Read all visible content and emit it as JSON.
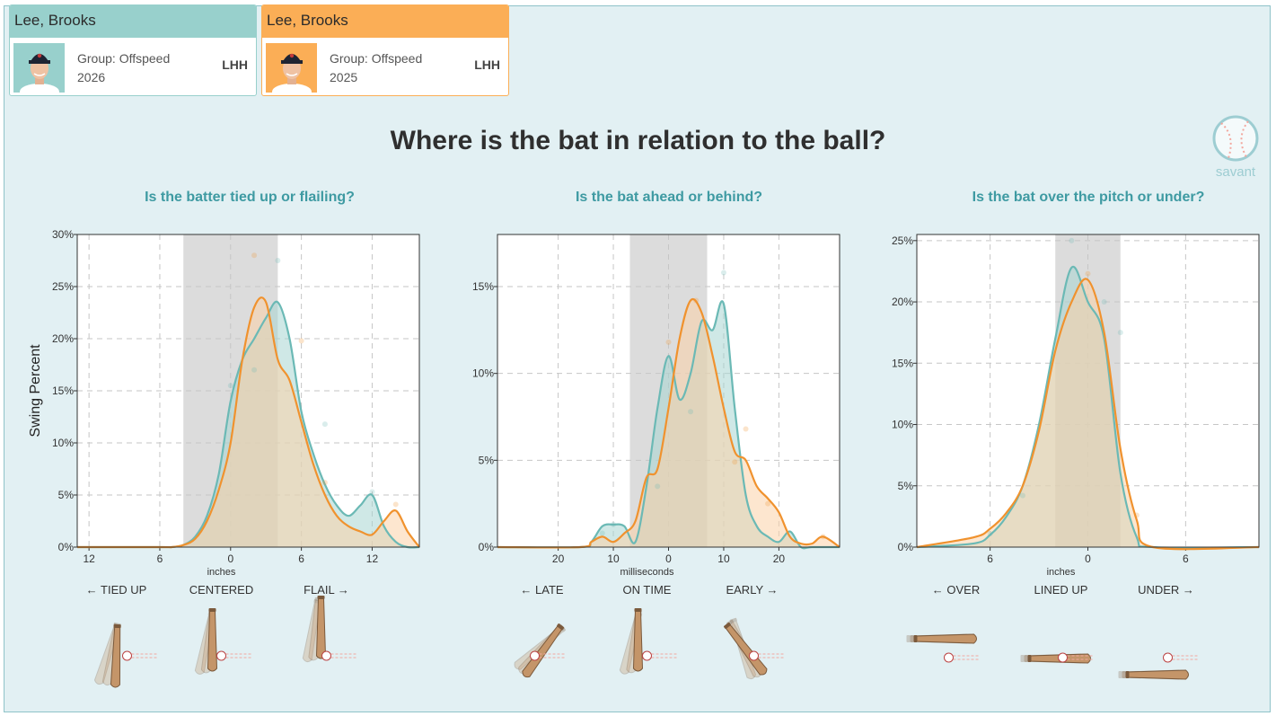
{
  "players": [
    {
      "name": "Lee, Brooks",
      "group": "Group: Offspeed",
      "year": "2026",
      "hand": "LHH",
      "color": "#98d0cc"
    },
    {
      "name": "Lee, Brooks",
      "group": "Group: Offspeed",
      "year": "2025",
      "hand": "LHH",
      "color": "#fbae56"
    }
  ],
  "title": "Where is the bat in relation to the ball?",
  "logo_text": "savant",
  "y_axis_label": "Swing Percent",
  "colors": {
    "series_2026": "#6bb9b5",
    "series_2025": "#f0922e",
    "fill_2026": "#a7d6d2",
    "fill_2025": "#fcd2a7",
    "band": "#dcdcdc"
  },
  "chart_data": [
    {
      "type": "area",
      "title": "Is the batter tied up or flailing?",
      "xlabel": "inches",
      "ylabel": "Swing Percent",
      "x_tick_labels": [
        "12",
        "6",
        "0",
        "6",
        "12"
      ],
      "x_ticks": [
        -12,
        -6,
        0,
        6,
        12
      ],
      "xlim": [
        -13,
        16
      ],
      "ylim": [
        0,
        30
      ],
      "y_ticks": [
        0,
        5,
        10,
        15,
        20,
        25,
        30
      ],
      "y_tick_labels": [
        "0%",
        "5%",
        "10%",
        "15%",
        "20%",
        "25%",
        "30%"
      ],
      "band": [
        -4,
        4
      ],
      "direction_labels": [
        "← TIED UP",
        "CENTERED",
        "FLAIL →"
      ],
      "grid": true,
      "series": [
        {
          "name": "2026",
          "x": [
            -13,
            -6,
            -5,
            -4,
            -3,
            -2,
            -1,
            0,
            1,
            2,
            3,
            4,
            5,
            6,
            7,
            8,
            9,
            10,
            11,
            12,
            13,
            14,
            15,
            16
          ],
          "y": [
            0,
            0,
            0,
            0.2,
            1,
            3,
            7,
            14,
            18,
            20,
            22,
            23.5,
            20,
            13,
            9,
            6,
            4,
            3,
            4,
            5,
            2,
            0.5,
            0,
            0
          ]
        },
        {
          "name": "2025",
          "x": [
            -13,
            -6,
            -5,
            -4,
            -3,
            -2,
            -1,
            0,
            1,
            2,
            3,
            4,
            5,
            6,
            7,
            8,
            9,
            10,
            11,
            12,
            13,
            14,
            15,
            16
          ],
          "y": [
            0,
            0,
            0,
            0.2,
            0.8,
            2.5,
            5.5,
            10,
            18,
            23,
            23.5,
            18,
            16,
            12,
            8,
            5,
            3,
            2,
            1.5,
            1.2,
            2.5,
            3.5,
            1.5,
            0
          ]
        }
      ],
      "points": [
        {
          "series": "2025",
          "x": 2,
          "y": 28
        },
        {
          "series": "2026",
          "x": 4,
          "y": 27.5
        },
        {
          "series": "2026",
          "x": 2,
          "y": 17
        },
        {
          "series": "2026",
          "x": 0,
          "y": 15.5
        },
        {
          "series": "2025",
          "x": 6,
          "y": 19.8
        },
        {
          "series": "2026",
          "x": 8,
          "y": 11.8
        },
        {
          "series": "2025",
          "x": 8,
          "y": 6.2
        },
        {
          "series": "2026",
          "x": 12,
          "y": 5.3
        },
        {
          "series": "2025",
          "x": 14,
          "y": 4.1
        }
      ]
    },
    {
      "type": "area",
      "title": "Is the bat ahead or behind?",
      "xlabel": "milliseconds",
      "ylabel": "",
      "x_tick_labels": [
        "20",
        "10",
        "0",
        "10",
        "20"
      ],
      "x_ticks": [
        -20,
        -10,
        0,
        10,
        20
      ],
      "xlim": [
        -31,
        31
      ],
      "ylim": [
        0,
        18
      ],
      "y_ticks": [
        0,
        5,
        10,
        15
      ],
      "y_tick_labels": [
        "0%",
        "5%",
        "10%",
        "15%"
      ],
      "band": [
        -7,
        7
      ],
      "direction_labels": [
        "← LATE",
        "ON TIME",
        "EARLY →"
      ],
      "grid": true,
      "series": [
        {
          "name": "2026",
          "x": [
            -31,
            -16,
            -14,
            -12,
            -10,
            -8,
            -6,
            -4,
            -2,
            0,
            2,
            4,
            6,
            8,
            10,
            12,
            14,
            16,
            18,
            20,
            22,
            24,
            26,
            31
          ],
          "y": [
            0,
            0,
            0.3,
            1.2,
            1.3,
            1.2,
            0.3,
            3.5,
            8,
            11,
            8.5,
            10,
            13,
            12.5,
            14,
            8,
            3,
            1.2,
            0.6,
            0.3,
            0.9,
            0,
            0,
            0
          ]
        },
        {
          "name": "2025",
          "x": [
            -31,
            -16,
            -14,
            -12,
            -10,
            -8,
            -6,
            -4,
            -2,
            0,
            2,
            4,
            6,
            8,
            10,
            12,
            14,
            16,
            18,
            20,
            22,
            24,
            26,
            28,
            31
          ],
          "y": [
            0,
            0,
            0.3,
            0.6,
            0.3,
            0.8,
            1.5,
            4,
            4.5,
            8,
            12,
            14.2,
            13.5,
            11,
            8,
            5.5,
            5,
            3.5,
            2.8,
            2,
            0.6,
            0.2,
            0.2,
            0.6,
            0
          ]
        }
      ],
      "points": [
        {
          "series": "2026",
          "x": 10,
          "y": 15.8
        },
        {
          "series": "2025",
          "x": 5,
          "y": 14.2
        },
        {
          "series": "2025",
          "x": 0,
          "y": 11.8
        },
        {
          "series": "2026",
          "x": -2,
          "y": 3.5
        },
        {
          "series": "2026",
          "x": 4,
          "y": 7.8
        },
        {
          "series": "2025",
          "x": 14,
          "y": 6.8
        },
        {
          "series": "2025",
          "x": 12,
          "y": 4.9
        },
        {
          "series": "2025",
          "x": 18,
          "y": 2.5
        },
        {
          "series": "2025",
          "x": 28,
          "y": 0.6
        },
        {
          "series": "2026",
          "x": -10,
          "y": 1.3
        },
        {
          "series": "2026",
          "x": -12,
          "y": 0.8
        }
      ]
    },
    {
      "type": "area",
      "title": "Is the bat over the pitch or under?",
      "xlabel": "inches",
      "ylabel": "",
      "x_tick_labels": [
        "6",
        "0",
        "6"
      ],
      "x_ticks": [
        -6,
        0,
        6
      ],
      "xlim": [
        -10.5,
        10.5
      ],
      "ylim": [
        0,
        25.5
      ],
      "y_ticks": [
        0,
        5,
        10,
        15,
        20,
        25
      ],
      "y_tick_labels": [
        "0%",
        "5%",
        "10%",
        "15%",
        "20%",
        "25%"
      ],
      "band": [
        -2,
        2
      ],
      "direction_labels": [
        "← OVER",
        "LINED UP",
        "UNDER →"
      ],
      "grid": true,
      "series": [
        {
          "name": "2026",
          "x": [
            -10.5,
            -7,
            -6,
            -5,
            -4,
            -3,
            -2,
            -1,
            0,
            1,
            2,
            3,
            4,
            10.5
          ],
          "y": [
            0,
            0.3,
            1,
            2.5,
            5,
            10,
            17,
            22.8,
            20,
            17,
            6,
            0.8,
            0,
            0
          ]
        },
        {
          "name": "2025",
          "x": [
            -10.5,
            -7,
            -6,
            -5,
            -4,
            -3,
            -2,
            -1,
            0,
            1,
            2,
            3,
            4,
            10.5
          ],
          "y": [
            0,
            0.8,
            1.5,
            2.8,
            5,
            9.5,
            16,
            20,
            21.8,
            17.5,
            8,
            2.2,
            0,
            0
          ]
        }
      ],
      "points": [
        {
          "series": "2026",
          "x": -1,
          "y": 25
        },
        {
          "series": "2025",
          "x": 0,
          "y": 22.3
        },
        {
          "series": "2026",
          "x": 1,
          "y": 20
        },
        {
          "series": "2026",
          "x": 2,
          "y": 17.5
        },
        {
          "series": "2025",
          "x": 3,
          "y": 2.6
        },
        {
          "series": "2026",
          "x": -4,
          "y": 4.2
        },
        {
          "series": "2026",
          "x": -6,
          "y": 1.1
        }
      ]
    }
  ]
}
